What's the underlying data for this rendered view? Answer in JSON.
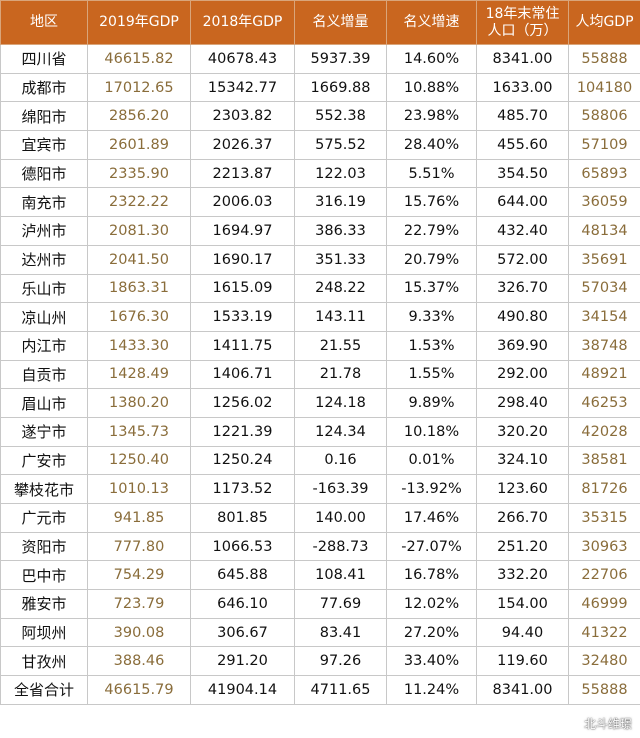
{
  "headers": [
    "地区",
    "2019年GDP",
    "2018年GDP",
    "名义增量",
    "名义增速",
    "18年末常住人口（万）",
    "人均GDP"
  ],
  "rows": [
    [
      "四川省",
      "46615.82",
      "40678.43",
      "5937.39",
      "14.60%",
      "8341.00",
      "55888"
    ],
    [
      "成都市",
      "17012.65",
      "15342.77",
      "1669.88",
      "10.88%",
      "1633.00",
      "104180"
    ],
    [
      "绵阳市",
      "2856.20",
      "2303.82",
      "552.38",
      "23.98%",
      "485.70",
      "58806"
    ],
    [
      "宜宾市",
      "2601.89",
      "2026.37",
      "575.52",
      "28.40%",
      "455.60",
      "57109"
    ],
    [
      "德阳市",
      "2335.90",
      "2213.87",
      "122.03",
      "5.51%",
      "354.50",
      "65893"
    ],
    [
      "南充市",
      "2322.22",
      "2006.03",
      "316.19",
      "15.76%",
      "644.00",
      "36059"
    ],
    [
      "泸州市",
      "2081.30",
      "1694.97",
      "386.33",
      "22.79%",
      "432.40",
      "48134"
    ],
    [
      "达州市",
      "2041.50",
      "1690.17",
      "351.33",
      "20.79%",
      "572.00",
      "35691"
    ],
    [
      "乐山市",
      "1863.31",
      "1615.09",
      "248.22",
      "15.37%",
      "326.70",
      "57034"
    ],
    [
      "凉山州",
      "1676.30",
      "1533.19",
      "143.11",
      "9.33%",
      "490.80",
      "34154"
    ],
    [
      "内江市",
      "1433.30",
      "1411.75",
      "21.55",
      "1.53%",
      "369.90",
      "38748"
    ],
    [
      "自贡市",
      "1428.49",
      "1406.71",
      "21.78",
      "1.55%",
      "292.00",
      "48921"
    ],
    [
      "眉山市",
      "1380.20",
      "1256.02",
      "124.18",
      "9.89%",
      "298.40",
      "46253"
    ],
    [
      "遂宁市",
      "1345.73",
      "1221.39",
      "124.34",
      "10.18%",
      "320.20",
      "42028"
    ],
    [
      "广安市",
      "1250.40",
      "1250.24",
      "0.16",
      "0.01%",
      "324.10",
      "38581"
    ],
    [
      "攀枝花市",
      "1010.13",
      "1173.52",
      "-163.39",
      "-13.92%",
      "123.60",
      "81726"
    ],
    [
      "广元市",
      "941.85",
      "801.85",
      "140.00",
      "17.46%",
      "266.70",
      "35315"
    ],
    [
      "资阳市",
      "777.80",
      "1066.53",
      "-288.73",
      "-27.07%",
      "251.20",
      "30963"
    ],
    [
      "巴中市",
      "754.29",
      "645.88",
      "108.41",
      "16.78%",
      "332.20",
      "22706"
    ],
    [
      "雅安市",
      "723.79",
      "646.10",
      "77.69",
      "12.02%",
      "154.00",
      "46999"
    ],
    [
      "阿坝州",
      "390.08",
      "306.67",
      "83.41",
      "27.20%",
      "94.40",
      "41322"
    ],
    [
      "甘孜州",
      "388.46",
      "291.20",
      "97.26",
      "33.40%",
      "119.60",
      "32480"
    ],
    [
      "全省合计",
      "46615.79",
      "41904.14",
      "4711.65",
      "11.24%",
      "8341.00",
      "55888"
    ]
  ],
  "watermark": {
    "text": "北斗维璟",
    "icon": "wechat-icon"
  },
  "colors": {
    "header_bg": "#c9661f",
    "gold_text": "#8a6d3b",
    "border": "#c8c8c8"
  }
}
